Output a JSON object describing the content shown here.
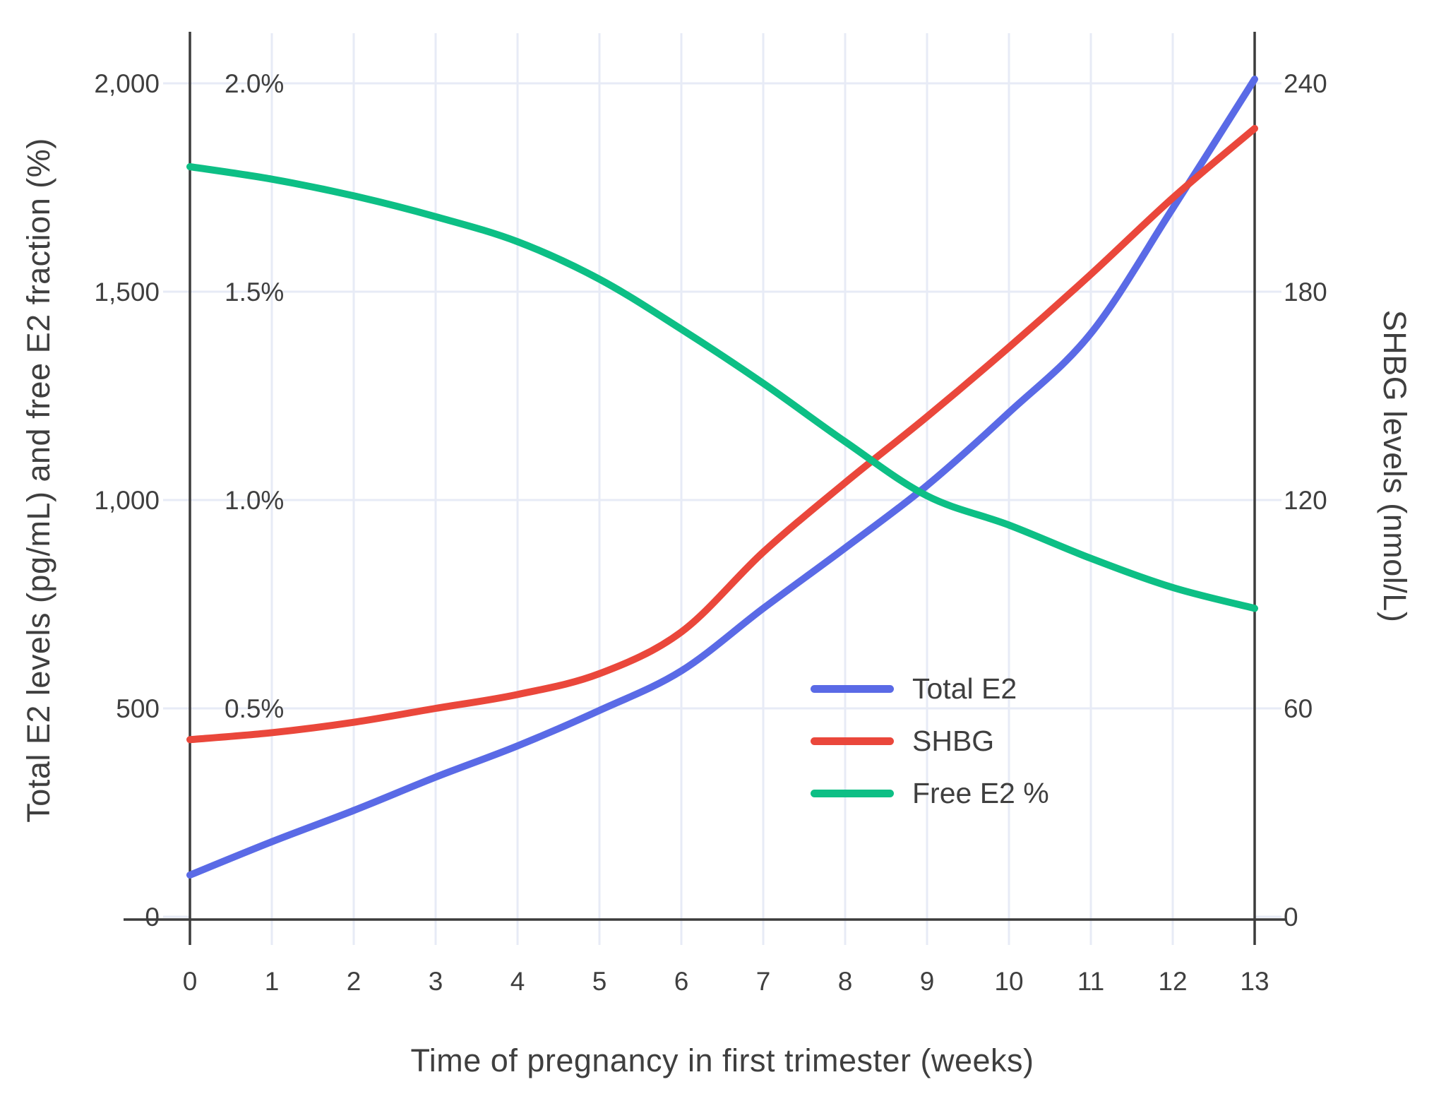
{
  "chart_data": {
    "type": "line",
    "title": "",
    "xlabel": "Time of pregnancy in first trimester (weeks)",
    "ylabel_left": "Total E2 levels (pg/mL) and free E2 fraction (%)",
    "ylabel_right": "SHBG levels (nmol/L)",
    "x": [
      0,
      1,
      2,
      3,
      4,
      5,
      6,
      7,
      8,
      9,
      10,
      11,
      12,
      13
    ],
    "x_tick_labels": [
      "0",
      "1",
      "2",
      "3",
      "4",
      "5",
      "6",
      "7",
      "8",
      "9",
      "10",
      "11",
      "12",
      "13"
    ],
    "grid": true,
    "legend_position": "center-right",
    "series": [
      {
        "name": "Total E2",
        "axis": "left_pgml",
        "unit": "pg/mL",
        "color": "#5A6AE6",
        "values": [
          100,
          180,
          255,
          335,
          410,
          495,
          590,
          740,
          885,
          1035,
          1210,
          1400,
          1700,
          2010
        ]
      },
      {
        "name": "SHBG",
        "axis": "right_nmol",
        "unit": "nmol/L",
        "color": "#EA473B",
        "values": [
          51,
          53,
          56,
          60,
          64,
          70,
          82,
          105,
          125,
          144,
          164,
          185,
          207,
          227
        ]
      },
      {
        "name": "Free E2 %",
        "axis": "left_percent",
        "unit": "%",
        "color": "#0DBF85",
        "values": [
          1.8,
          1.77,
          1.73,
          1.68,
          1.62,
          1.53,
          1.41,
          1.28,
          1.14,
          1.01,
          0.94,
          0.86,
          0.79,
          0.74
        ]
      }
    ],
    "left_axis": {
      "range_pgml": [
        0,
        2120
      ],
      "tick_values": [
        0,
        500,
        1000,
        1500,
        2000
      ],
      "tick_labels": [
        "0",
        "500",
        "1,000",
        "1,500",
        "2,000"
      ],
      "percent_tick_values": [
        500,
        1000,
        1500,
        2000
      ],
      "percent_tick_labels": [
        "0.5%",
        "1.0%",
        "1.5%",
        "2.0%"
      ]
    },
    "right_axis": {
      "range_nmol": [
        0,
        254
      ],
      "tick_values": [
        0,
        60,
        120,
        180,
        240
      ],
      "tick_labels": [
        "0",
        "60",
        "120",
        "180",
        "240"
      ]
    },
    "colors": {
      "grid": "#E7EBF6",
      "axis_line": "#3C3C3C",
      "tick_text": "#3F3F3F"
    }
  }
}
